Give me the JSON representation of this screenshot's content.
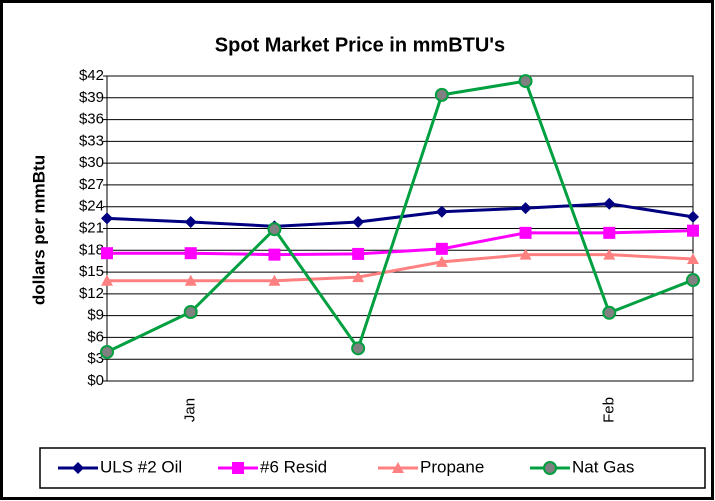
{
  "chart_data": {
    "type": "line",
    "title": "Spot Market Price in mmBTU's",
    "ylabel": "dollars per mmBtu",
    "categories": [
      null,
      "Jan",
      null,
      null,
      null,
      null,
      "Feb",
      null
    ],
    "ylim": [
      0,
      42
    ],
    "yticks": [
      {
        "value": 0,
        "label": "$0"
      },
      {
        "value": 3,
        "label": "$3"
      },
      {
        "value": 6,
        "label": "$6"
      },
      {
        "value": 9,
        "label": "$9"
      },
      {
        "value": 12,
        "label": "$12"
      },
      {
        "value": 15,
        "label": "$15"
      },
      {
        "value": 18,
        "label": "$18"
      },
      {
        "value": 21,
        "label": "$21"
      },
      {
        "value": 24,
        "label": "$24"
      },
      {
        "value": 27,
        "label": "$27"
      },
      {
        "value": 30,
        "label": "$30"
      },
      {
        "value": 33,
        "label": "$33"
      },
      {
        "value": 36,
        "label": "$36"
      },
      {
        "value": 39,
        "label": "$39"
      },
      {
        "value": 42,
        "label": "$42"
      }
    ],
    "grid": true,
    "legend": "bottom",
    "series": [
      {
        "name": "ULS #2 Oil",
        "color": "#000080",
        "marker": "diamond",
        "values": [
          22.4,
          21.9,
          21.3,
          21.9,
          23.3,
          23.8,
          24.4,
          22.6
        ]
      },
      {
        "name": "#6 Resid",
        "color": "#ff00ff",
        "marker": "square",
        "values": [
          17.6,
          17.6,
          17.4,
          17.5,
          18.2,
          20.4,
          20.4,
          20.7
        ]
      },
      {
        "name": "Propane",
        "color": "#ff8080",
        "marker": "triangle",
        "values": [
          13.8,
          13.8,
          13.8,
          14.3,
          16.4,
          17.4,
          17.4,
          16.8
        ]
      },
      {
        "name": "Nat Gas",
        "color": "#00a040",
        "marker": "circle",
        "values": [
          4.0,
          9.5,
          20.9,
          4.5,
          39.4,
          41.3,
          9.4,
          13.9
        ]
      }
    ]
  }
}
